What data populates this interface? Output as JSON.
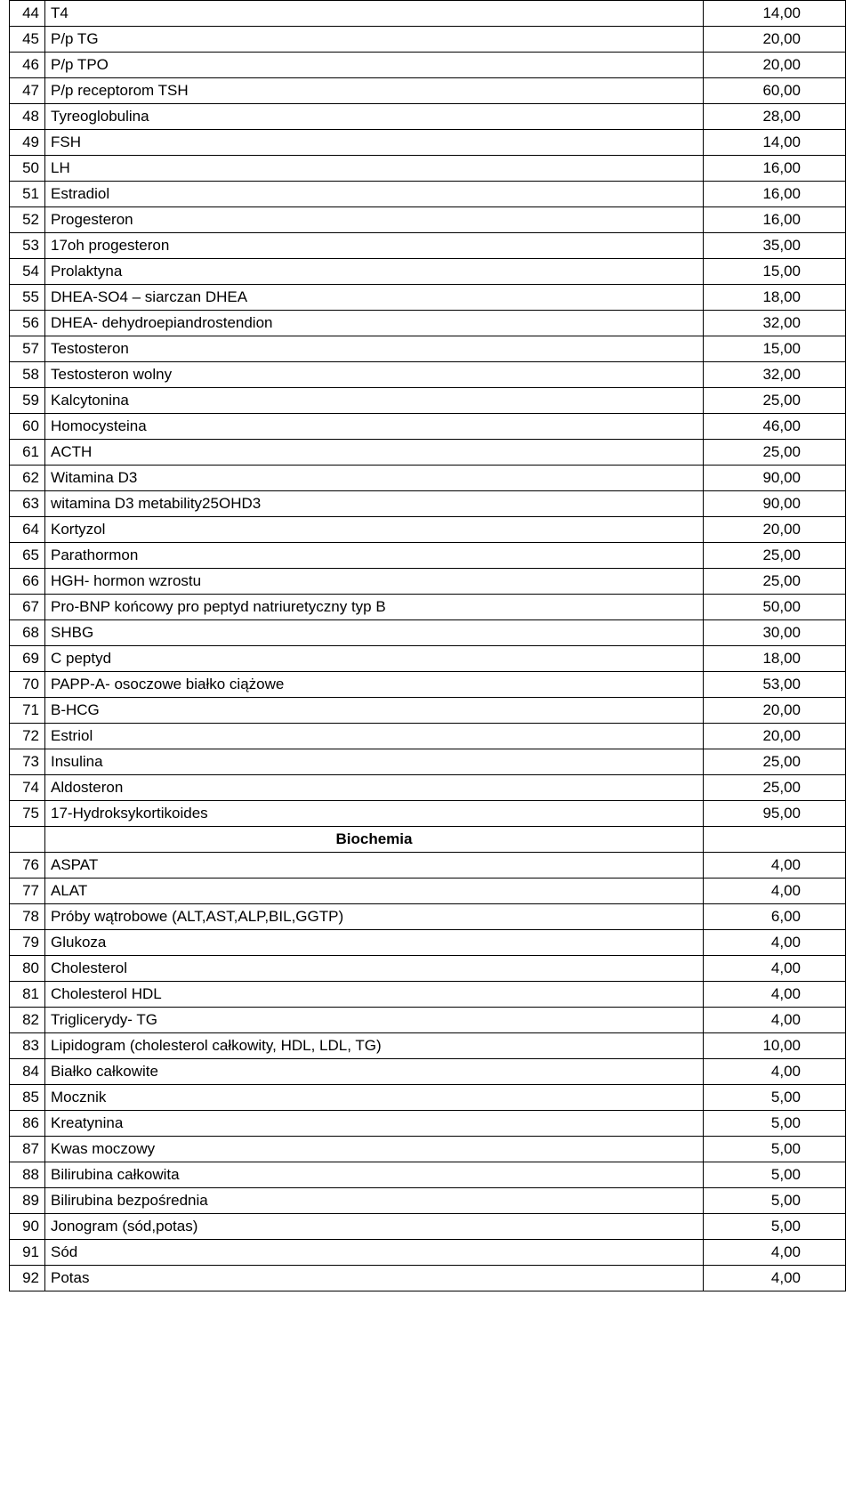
{
  "rows": [
    {
      "num": "44",
      "name": "T4",
      "val": "14,00"
    },
    {
      "num": "45",
      "name": "P/p TG",
      "val": "20,00"
    },
    {
      "num": "46",
      "name": "P/p TPO",
      "val": "20,00"
    },
    {
      "num": "47",
      "name": "P/p receptorom TSH",
      "val": "60,00"
    },
    {
      "num": "48",
      "name": "Tyreoglobulina",
      "val": "28,00"
    },
    {
      "num": "49",
      "name": "FSH",
      "val": "14,00"
    },
    {
      "num": "50",
      "name": "LH",
      "val": "16,00"
    },
    {
      "num": "51",
      "name": "Estradiol",
      "val": "16,00"
    },
    {
      "num": "52",
      "name": "Progesteron",
      "val": "16,00"
    },
    {
      "num": "53",
      "name": "17oh progesteron",
      "val": "35,00"
    },
    {
      "num": "54",
      "name": "Prolaktyna",
      "val": "15,00"
    },
    {
      "num": "55",
      "name": "DHEA-SO4 – siarczan DHEA",
      "val": "18,00"
    },
    {
      "num": "56",
      "name": "DHEA- dehydroepiandrostendion",
      "val": "32,00"
    },
    {
      "num": "57",
      "name": "Testosteron",
      "val": "15,00"
    },
    {
      "num": "58",
      "name": "Testosteron wolny",
      "val": "32,00"
    },
    {
      "num": "59",
      "name": "Kalcytonina",
      "val": "25,00"
    },
    {
      "num": "60",
      "name": "Homocysteina",
      "val": "46,00"
    },
    {
      "num": "61",
      "name": "ACTH",
      "val": "25,00"
    },
    {
      "num": "62",
      "name": "Witamina D3",
      "val": "90,00"
    },
    {
      "num": "63",
      "name": "witamina D3 metability25OHD3",
      "val": "90,00"
    },
    {
      "num": "64",
      "name": "Kortyzol",
      "val": "20,00"
    },
    {
      "num": "65",
      "name": "Parathormon",
      "val": "25,00"
    },
    {
      "num": "66",
      "name": "HGH- hormon wzrostu",
      "val": "25,00"
    },
    {
      "num": "67",
      "name": "Pro-BNP końcowy pro peptyd natriuretyczny typ B",
      "val": "50,00"
    },
    {
      "num": "68",
      "name": "SHBG",
      "val": "30,00"
    },
    {
      "num": "69",
      "name": "C peptyd",
      "val": "18,00"
    },
    {
      "num": "70",
      "name": "PAPP-A- osoczowe białko ciążowe",
      "val": "53,00"
    },
    {
      "num": "71",
      "name": "B-HCG",
      "val": "20,00"
    },
    {
      "num": "72",
      "name": "Estriol",
      "val": "20,00"
    },
    {
      "num": "73",
      "name": "Insulina",
      "val": "25,00"
    },
    {
      "num": "74",
      "name": "Aldosteron",
      "val": "25,00"
    },
    {
      "num": "75",
      "name": "17-Hydroksykortikoides",
      "val": "95,00"
    },
    {
      "section": "Biochemia"
    },
    {
      "num": "76",
      "name": "ASPAT",
      "val": "4,00"
    },
    {
      "num": "77",
      "name": "ALAT",
      "val": "4,00"
    },
    {
      "num": "78",
      "name": "Próby wątrobowe (ALT,AST,ALP,BIL,GGTP)",
      "val": "6,00"
    },
    {
      "num": "79",
      "name": "Glukoza",
      "val": "4,00"
    },
    {
      "num": "80",
      "name": "Cholesterol",
      "val": "4,00"
    },
    {
      "num": "81",
      "name": "Cholesterol HDL",
      "val": "4,00"
    },
    {
      "num": "82",
      "name": "Triglicerydy- TG",
      "val": "4,00"
    },
    {
      "num": "83",
      "name": "Lipidogram (cholesterol całkowity, HDL, LDL, TG)",
      "val": "10,00"
    },
    {
      "num": "84",
      "name": "Białko całkowite",
      "val": "4,00"
    },
    {
      "num": "85",
      "name": "Mocznik",
      "val": "5,00"
    },
    {
      "num": "86",
      "name": "Kreatynina",
      "val": "5,00"
    },
    {
      "num": "87",
      "name": "Kwas moczowy",
      "val": "5,00"
    },
    {
      "num": "88",
      "name": "Bilirubina całkowita",
      "val": "5,00"
    },
    {
      "num": "89",
      "name": "Bilirubina bezpośrednia",
      "val": "5,00"
    },
    {
      "num": "90",
      "name": "Jonogram (sód,potas)",
      "val": "5,00"
    },
    {
      "num": "91",
      "name": "Sód",
      "val": "4,00"
    },
    {
      "num": "92",
      "name": "Potas",
      "val": "4,00"
    }
  ]
}
